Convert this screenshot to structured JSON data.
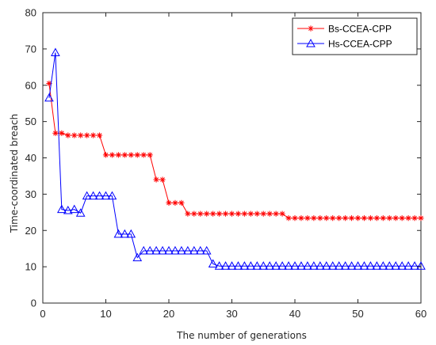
{
  "chart_data": {
    "type": "line",
    "title": "",
    "xlabel": "The number of generations",
    "ylabel": "Time-coordinated breach",
    "xlim": [
      0,
      60
    ],
    "ylim": [
      0,
      80
    ],
    "xticks": [
      "0",
      "10",
      "20",
      "30",
      "40",
      "50",
      "60"
    ],
    "yticks": [
      "0",
      "10",
      "20",
      "30",
      "40",
      "50",
      "60",
      "70",
      "80"
    ],
    "grid": false,
    "legend_position": "top-right",
    "series": [
      {
        "name": "Bs-CCEA-CPP",
        "color": "#ff0000",
        "marker": "asterisk",
        "x": [
          1,
          2,
          3,
          4,
          5,
          6,
          7,
          8,
          9,
          10,
          11,
          12,
          13,
          14,
          15,
          16,
          17,
          18,
          19,
          20,
          21,
          22,
          23,
          24,
          25,
          26,
          27,
          28,
          29,
          30,
          31,
          32,
          33,
          34,
          35,
          36,
          37,
          38,
          39,
          40,
          41,
          42,
          43,
          44,
          45,
          46,
          47,
          48,
          49,
          50,
          51,
          52,
          53,
          54,
          55,
          56,
          57,
          58,
          59,
          60
        ],
        "y": [
          60.5,
          46.8,
          46.8,
          46.2,
          46.2,
          46.2,
          46.2,
          46.2,
          46.2,
          40.8,
          40.8,
          40.8,
          40.8,
          40.8,
          40.8,
          40.8,
          40.8,
          34,
          34,
          27.6,
          27.6,
          27.6,
          24.6,
          24.6,
          24.6,
          24.6,
          24.6,
          24.6,
          24.6,
          24.6,
          24.6,
          24.6,
          24.6,
          24.6,
          24.6,
          24.6,
          24.6,
          24.6,
          23.4,
          23.4,
          23.4,
          23.4,
          23.4,
          23.4,
          23.4,
          23.4,
          23.4,
          23.4,
          23.4,
          23.4,
          23.4,
          23.4,
          23.4,
          23.4,
          23.4,
          23.4,
          23.4,
          23.4,
          23.4,
          23.4
        ]
      },
      {
        "name": "Hs-CCEA-CPP",
        "color": "#0000ff",
        "marker": "triangle",
        "x": [
          1,
          2,
          3,
          4,
          5,
          6,
          7,
          8,
          9,
          10,
          11,
          12,
          13,
          14,
          15,
          16,
          17,
          18,
          19,
          20,
          21,
          22,
          23,
          24,
          25,
          26,
          27,
          28,
          29,
          30,
          31,
          32,
          33,
          34,
          35,
          36,
          37,
          38,
          39,
          40,
          41,
          42,
          43,
          44,
          45,
          46,
          47,
          48,
          49,
          50,
          51,
          52,
          53,
          54,
          55,
          56,
          57,
          58,
          59,
          60
        ],
        "y": [
          56.5,
          69,
          25.8,
          25.5,
          25.8,
          24.8,
          29.5,
          29.5,
          29.5,
          29.5,
          29.5,
          19,
          19,
          19,
          12.5,
          14.4,
          14.4,
          14.4,
          14.4,
          14.4,
          14.4,
          14.4,
          14.4,
          14.4,
          14.4,
          14.4,
          10.8,
          10.2,
          10.2,
          10.2,
          10.2,
          10.2,
          10.2,
          10.2,
          10.2,
          10.2,
          10.2,
          10.2,
          10.2,
          10.2,
          10.2,
          10.2,
          10.2,
          10.2,
          10.2,
          10.2,
          10.2,
          10.2,
          10.2,
          10.2,
          10.2,
          10.2,
          10.2,
          10.2,
          10.2,
          10.2,
          10.2,
          10.2,
          10.2,
          10.2
        ]
      }
    ]
  }
}
